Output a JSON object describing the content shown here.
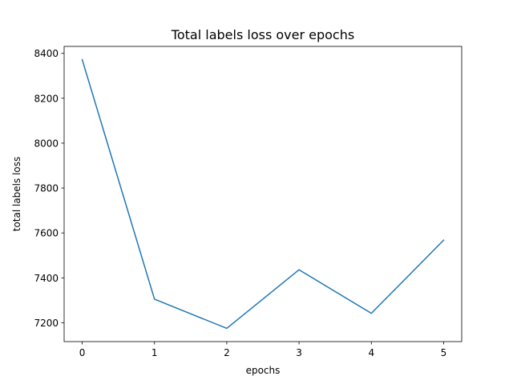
{
  "chart_data": {
    "type": "line",
    "title": "Total labels loss over epochs",
    "xlabel": "epochs",
    "ylabel": "total labels loss",
    "x": [
      0,
      1,
      2,
      3,
      4,
      5
    ],
    "series": [
      {
        "values": [
          8372,
          7305,
          7175,
          7436,
          7242,
          7568
        ]
      }
    ],
    "xlim": [
      -0.25,
      5.25
    ],
    "ylim": [
      7116,
      8431
    ],
    "xticks": [
      0,
      1,
      2,
      3,
      4,
      5
    ],
    "xtick_labels": [
      "0",
      "1",
      "2",
      "3",
      "4",
      "5"
    ],
    "yticks": [
      7200,
      7400,
      7600,
      7800,
      8000,
      8200,
      8400
    ],
    "ytick_labels": [
      "7200",
      "7400",
      "7600",
      "7800",
      "8000",
      "8200",
      "8400"
    ],
    "grid": false,
    "line_color": "#1f77b4"
  }
}
